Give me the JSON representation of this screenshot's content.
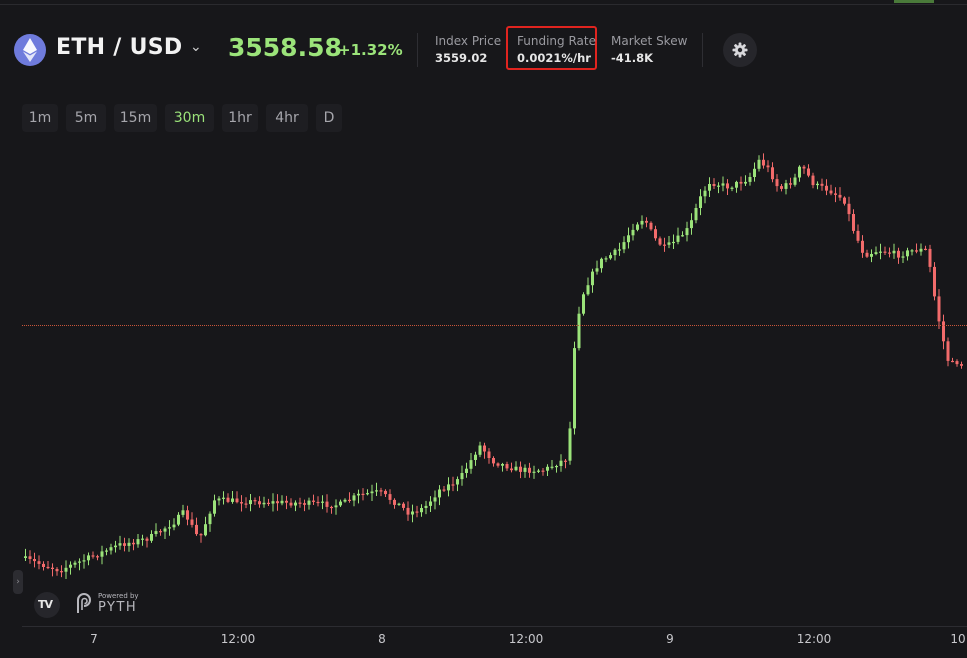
{
  "header": {
    "pair": "ETH / USD",
    "price": "3558.58",
    "change": "+1.32%",
    "stats": [
      {
        "label": "Index Price",
        "value": "3559.02"
      },
      {
        "label": "Funding Rate",
        "value": "0.0021%/hr"
      },
      {
        "label": "Market Skew",
        "value": "-41.8K"
      }
    ]
  },
  "icons": {
    "asset": "ethereum-icon",
    "dropdown": "chevron-down-icon",
    "settings": "gear-icon"
  },
  "timeframes": [
    "1m",
    "5m",
    "15m",
    "30m",
    "1hr",
    "4hr",
    "D"
  ],
  "active_timeframe": "30m",
  "chart_data": {
    "type": "candlestick",
    "x_ticks": [
      "7",
      "12:00",
      "8",
      "12:00",
      "9",
      "12:00",
      "10"
    ],
    "colors": {
      "up": "#9be37a",
      "down": "#f26b6b",
      "reference_line": "#c8553a"
    },
    "reference_price": "3558.58"
  },
  "branding": {
    "charting": "TradingView",
    "tv_mark": "TV",
    "powered_by": "Powered by",
    "provider": "PYTH"
  }
}
